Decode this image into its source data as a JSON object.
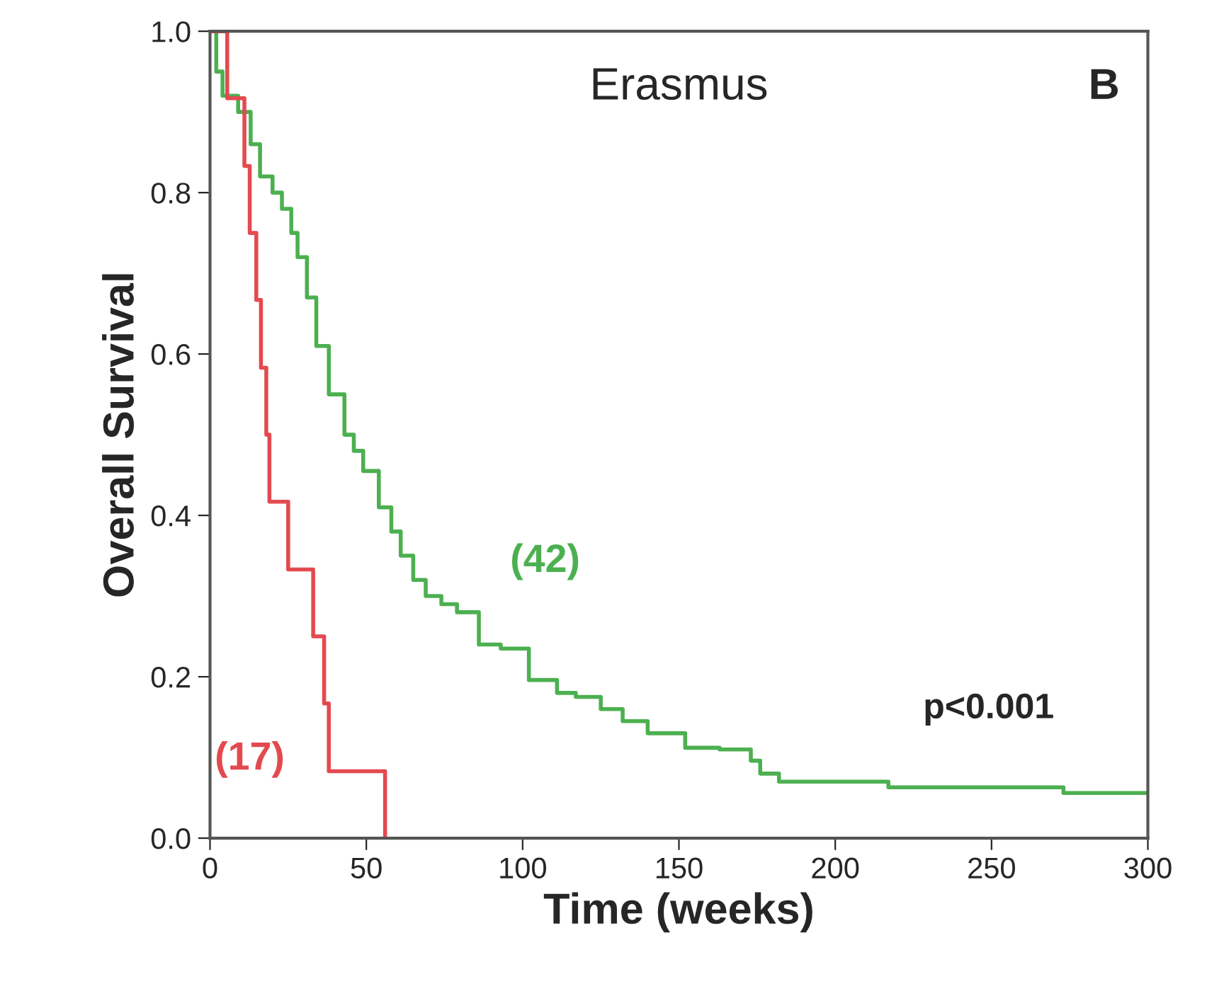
{
  "chart_data": {
    "type": "step",
    "title": "Erasmus",
    "xlabel": "Time (weeks)",
    "ylabel": "Overall Survival",
    "annotations": [
      "B",
      "p<0.001"
    ],
    "series": [
      {
        "name": "(42)",
        "color": "#4cb050",
        "x": [
          0,
          2,
          4,
          9,
          13,
          16,
          20,
          23,
          26,
          28,
          31,
          34,
          38,
          43,
          46,
          49,
          54,
          58,
          61,
          65,
          69,
          74,
          79,
          86,
          93,
          102,
          111,
          117,
          125,
          132,
          140,
          152,
          163,
          173,
          176,
          182,
          217,
          273,
          300
        ],
        "values": [
          1.0,
          0.95,
          0.92,
          0.9,
          0.86,
          0.82,
          0.8,
          0.78,
          0.75,
          0.72,
          0.67,
          0.61,
          0.55,
          0.5,
          0.48,
          0.455,
          0.41,
          0.38,
          0.35,
          0.32,
          0.3,
          0.29,
          0.28,
          0.24,
          0.235,
          0.196,
          0.18,
          0.175,
          0.16,
          0.145,
          0.13,
          0.112,
          0.11,
          0.096,
          0.08,
          0.07,
          0.063,
          0.056,
          0.056
        ]
      },
      {
        "name": "(17)",
        "color": "#e34a4f",
        "x": [
          0,
          5.5,
          11,
          12.7,
          14.8,
          16.3,
          18,
          19,
          25,
          33,
          36.5,
          38,
          56
        ],
        "values": [
          1.0,
          0.917,
          0.833,
          0.75,
          0.667,
          0.583,
          0.5,
          0.417,
          0.333,
          0.25,
          0.167,
          0.083,
          0.0
        ]
      }
    ],
    "xlim": [
      0,
      300
    ],
    "xticks": [
      0,
      50,
      100,
      150,
      200,
      250,
      300
    ],
    "ylim": [
      0,
      1
    ],
    "yticks": [
      {
        "value": 0,
        "label": "0.0"
      },
      {
        "value": 0.2,
        "label": "0.2"
      },
      {
        "value": 0.4,
        "label": "0.4"
      },
      {
        "value": 0.6,
        "label": "0.6"
      },
      {
        "value": 0.8,
        "label": "0.8"
      },
      {
        "value": 1,
        "label": "1.0"
      }
    ],
    "grid": false,
    "legend": false
  }
}
